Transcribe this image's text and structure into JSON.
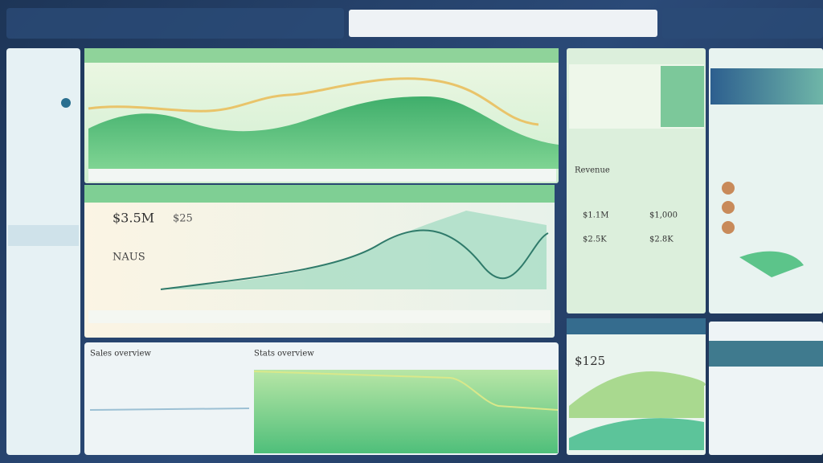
{
  "kpi": {
    "main": "$3.5M",
    "secondary": "$25",
    "label": "NAUS"
  },
  "table": {
    "title": "Revenue",
    "rows": [
      [
        "$1.1M",
        "$1,000"
      ],
      [
        "$2.5K",
        "$2.8K"
      ]
    ]
  },
  "card": {
    "value": "$125"
  },
  "bottom": {
    "title": "Sales overview",
    "middle": "Stats overview"
  }
}
